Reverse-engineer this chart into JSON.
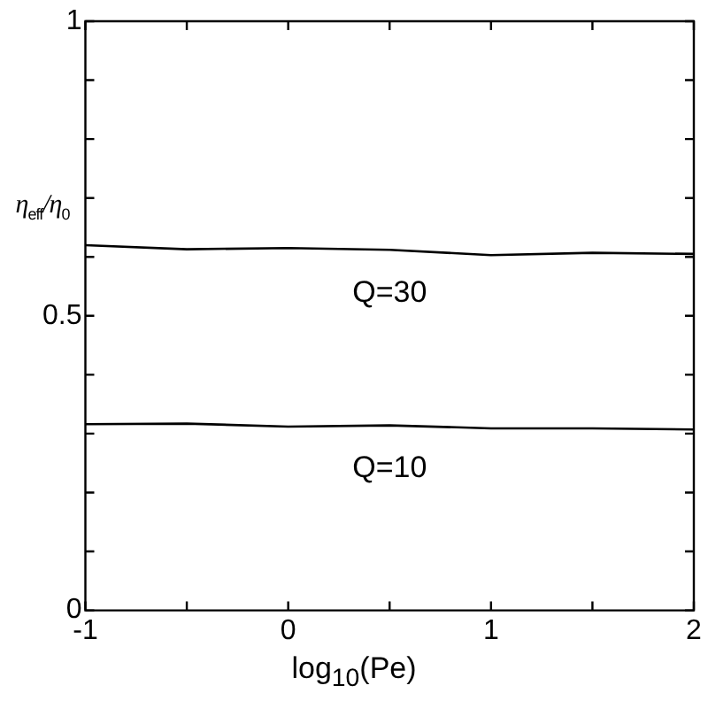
{
  "chart_data": {
    "type": "line",
    "xlabel": "log$_{10}$(Pe)",
    "ylabel": "η$_{eff}$/η$_{0}$",
    "x": [
      -1,
      -0.5,
      0,
      0.5,
      1,
      1.5,
      2
    ],
    "series": [
      {
        "name": "Q=30",
        "color": "#000000",
        "values": [
          0.62,
          0.613,
          0.615,
          0.612,
          0.603,
          0.607,
          0.605
        ]
      },
      {
        "name": "Q=10",
        "color": "#000000",
        "values": [
          0.316,
          0.317,
          0.312,
          0.314,
          0.309,
          0.309,
          0.307
        ]
      }
    ],
    "xlim": [
      -1,
      2
    ],
    "ylim": [
      0,
      1
    ],
    "xticks": [
      -1,
      {
        "value": -0.5,
        "label": null
      },
      0,
      {
        "value": 0.5,
        "label": null
      },
      1,
      {
        "value": 1.5,
        "label": null
      },
      2
    ],
    "yticks": [
      0,
      {
        "value": 0.1,
        "label": null
      },
      {
        "value": 0.2,
        "label": null
      },
      {
        "value": 0.3,
        "label": null
      },
      {
        "value": 0.4,
        "label": null
      },
      0.5,
      {
        "value": 0.6,
        "label": null
      },
      {
        "value": 0.7,
        "label": null
      },
      {
        "value": 0.8,
        "label": null
      },
      {
        "value": 0.9,
        "label": null
      },
      1
    ],
    "grid": false,
    "legend": false,
    "marker": "none",
    "line_style": "solid"
  }
}
